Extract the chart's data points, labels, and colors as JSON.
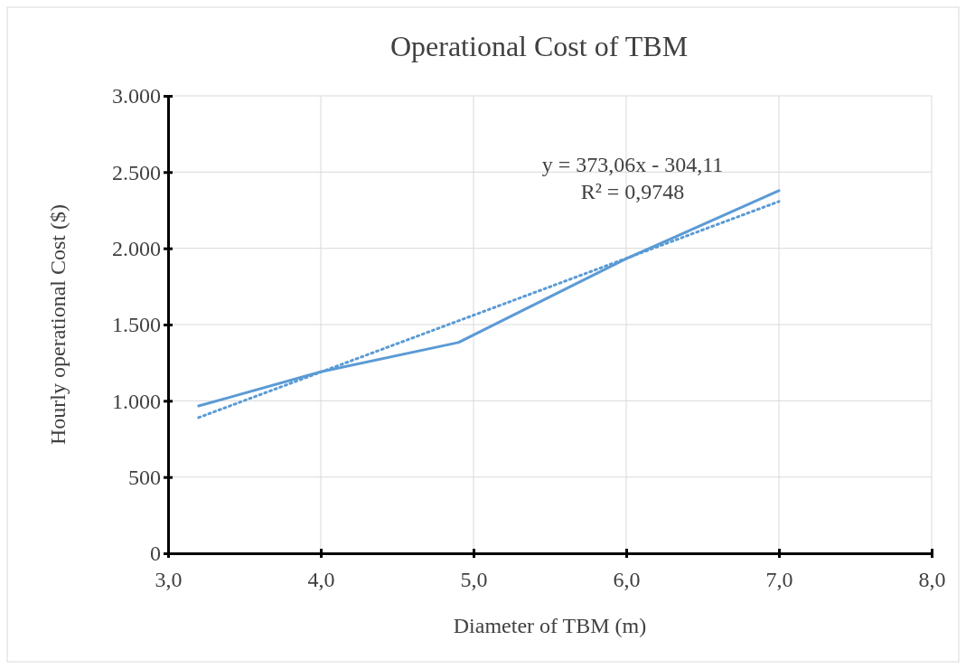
{
  "chart_data": {
    "type": "line",
    "title": "Operational Cost of TBM",
    "xlabel": "Diameter of TBM (m)",
    "ylabel": "Hourly operational Cost ($)",
    "x": [
      3.2,
      4.0,
      4.9,
      6.0,
      7.0
    ],
    "series": [
      {
        "color": "#5b9bd5",
        "values": [
          966,
          1190,
          1382,
          1932,
          2378
        ],
        "line_style": "solid"
      },
      {
        "type": "line",
        "color": "#5b9bd5",
        "x": [
          3.2,
          7.0
        ],
        "values": [
          890,
          2307
        ],
        "line_style": "dotted"
      }
    ],
    "xlim": [
      3,
      8
    ],
    "xticks": [
      {
        "value": 3,
        "label": "3,0"
      },
      {
        "value": 4,
        "label": "4,0"
      },
      {
        "value": 5,
        "label": "5,0"
      },
      {
        "value": 6,
        "label": "6,0"
      },
      {
        "value": 7,
        "label": "7,0"
      },
      {
        "value": 8,
        "label": "8,0"
      }
    ],
    "ylim": [
      0,
      3000
    ],
    "yticks": [
      0,
      500,
      {
        "value": 1000,
        "label": "1.000"
      },
      {
        "value": 1500,
        "label": "1.500"
      },
      {
        "value": 2000,
        "label": "2.000"
      },
      {
        "value": 2500,
        "label": "2.500"
      },
      {
        "value": 3000,
        "label": "3.000"
      }
    ],
    "grid": true,
    "marker": "none",
    "annotations": [
      "y = 373,06x - 304,11",
      "R² = 0,9748"
    ]
  }
}
